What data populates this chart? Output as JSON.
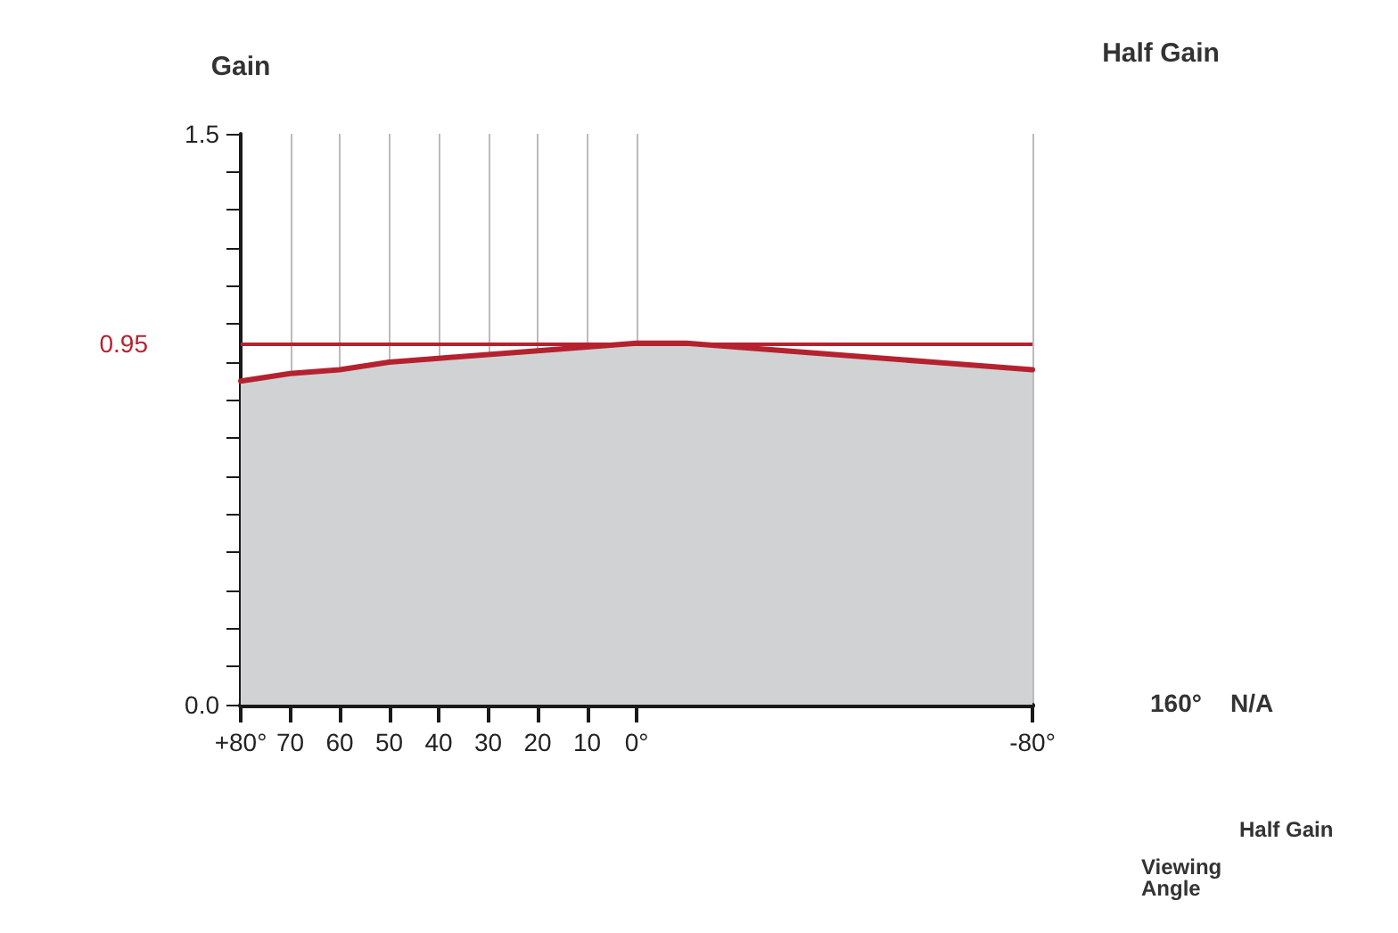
{
  "chart_data": {
    "type": "area",
    "ylabel": "Gain",
    "x": [
      80,
      70,
      60,
      50,
      40,
      30,
      20,
      10,
      0,
      -10,
      -20,
      -30,
      -40,
      -50,
      -60,
      -70,
      -80
    ],
    "series": [
      {
        "color": "#b5222f",
        "values": [
          0.85,
          0.87,
          0.88,
          0.9,
          0.91,
          0.92,
          0.93,
          0.94,
          0.95,
          0.95,
          0.94,
          0.93,
          0.92,
          0.91,
          0.9,
          0.89,
          0.88
        ]
      }
    ],
    "xlim": [
      80,
      -80
    ],
    "xticks": [
      {
        "value": 80,
        "label": "+80°"
      },
      70,
      60,
      50,
      40,
      30,
      20,
      10,
      {
        "value": 0,
        "label": "0°"
      },
      {
        "value": -80,
        "label": "-80°"
      }
    ],
    "ylim": [
      0,
      1.5
    ],
    "yticks": [
      {
        "value": 0,
        "label": "0.0"
      },
      {
        "value": 0.1,
        "label": null
      },
      {
        "value": 0.2,
        "label": null
      },
      {
        "value": 0.3,
        "label": null
      },
      {
        "value": 0.4,
        "label": null
      },
      {
        "value": 0.5,
        "label": null
      },
      {
        "value": 0.6,
        "label": null
      },
      {
        "value": 0.7,
        "label": null
      },
      {
        "value": 0.8,
        "label": null
      },
      {
        "value": 0.9,
        "label": null
      },
      {
        "value": 1.0,
        "label": null
      },
      {
        "value": 1.1,
        "label": null
      },
      {
        "value": 1.2,
        "label": null
      },
      {
        "value": 1.3,
        "label": null
      },
      {
        "value": 1.4,
        "label": null
      },
      1.5
    ],
    "ref_lines": [
      {
        "axis": "y",
        "value": 0.95,
        "label": "0.95",
        "color": "#b5222f"
      }
    ],
    "annotations": [
      "Half Gain",
      "160°",
      "N/A",
      "Viewing Angle",
      "Half Gain"
    ],
    "grid": "x",
    "marker": "none",
    "line_style": "solid"
  }
}
